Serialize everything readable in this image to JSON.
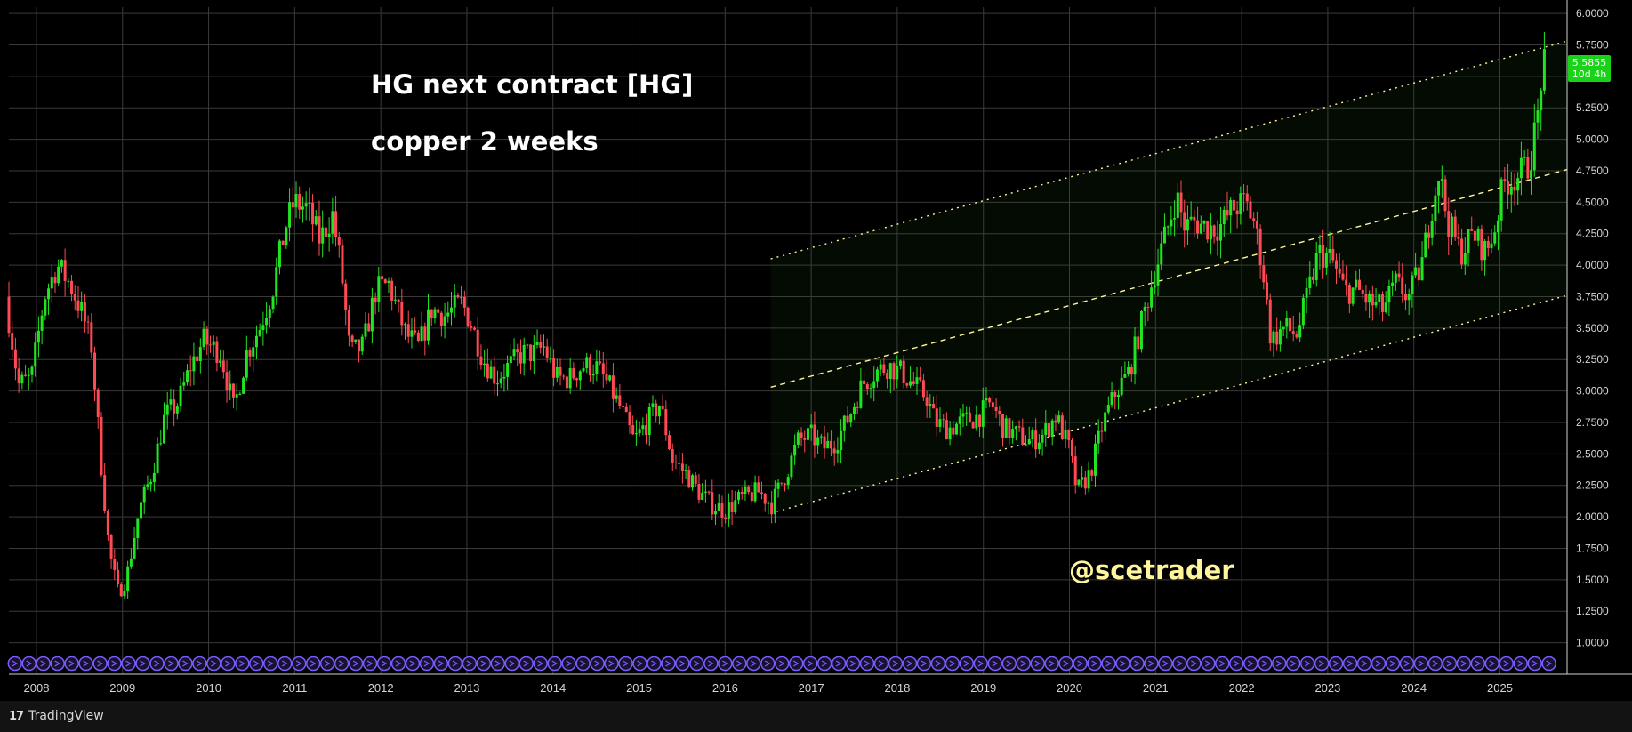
{
  "chart_data": {
    "type": "candlestick",
    "title": "HG next contract [HG]",
    "subtitle": "copper 2 weeks",
    "watermark": "@scetrader",
    "branding": "TradingView",
    "x_ticks": [
      "2008",
      "2009",
      "2010",
      "2011",
      "2012",
      "2013",
      "2014",
      "2015",
      "2016",
      "2017",
      "2018",
      "2019",
      "2020",
      "2021",
      "2022",
      "2023",
      "2024",
      "2025"
    ],
    "y_ticks": [
      "6.0000",
      "5.7500",
      "5.5000",
      "5.2500",
      "5.0000",
      "4.7500",
      "4.5000",
      "4.2500",
      "4.0000",
      "3.7500",
      "3.5000",
      "3.2500",
      "3.0000",
      "2.7500",
      "2.5000",
      "2.2500",
      "2.0000",
      "1.7500",
      "1.5000",
      "1.2500",
      "1.0000"
    ],
    "ylim": [
      0.75,
      6.05
    ],
    "xlim": [
      2007.75,
      2025.85
    ],
    "last_price": "5.5855",
    "countdown": "10d 4h",
    "colors": {
      "up": "#22e522",
      "down": "#ff4a55",
      "background": "#000000",
      "grid": "#3a3a3a",
      "channel": "#fff59d",
      "title": "#ffffff",
      "watermark": "#fff59d",
      "event_markers": "#7a5cff"
    },
    "price_path": [
      [
        2007.75,
        3.75
      ],
      [
        2007.9,
        3.05
      ],
      [
        2008.05,
        3.1
      ],
      [
        2008.2,
        3.75
      ],
      [
        2008.35,
        4.0
      ],
      [
        2008.5,
        3.85
      ],
      [
        2008.65,
        3.6
      ],
      [
        2008.75,
        3.35
      ],
      [
        2008.85,
        2.5
      ],
      [
        2008.95,
        1.75
      ],
      [
        2009.05,
        1.4
      ],
      [
        2009.15,
        1.5
      ],
      [
        2009.3,
        2.05
      ],
      [
        2009.45,
        2.35
      ],
      [
        2009.6,
        2.8
      ],
      [
        2009.75,
        2.9
      ],
      [
        2009.9,
        3.2
      ],
      [
        2010.05,
        3.4
      ],
      [
        2010.25,
        3.3
      ],
      [
        2010.4,
        2.85
      ],
      [
        2010.55,
        3.3
      ],
      [
        2010.7,
        3.5
      ],
      [
        2010.85,
        3.8
      ],
      [
        2011.0,
        4.3
      ],
      [
        2011.1,
        4.5
      ],
      [
        2011.25,
        4.45
      ],
      [
        2011.4,
        4.2
      ],
      [
        2011.55,
        4.4
      ],
      [
        2011.65,
        3.95
      ],
      [
        2011.75,
        3.3
      ],
      [
        2011.9,
        3.35
      ],
      [
        2012.05,
        3.8
      ],
      [
        2012.2,
        3.85
      ],
      [
        2012.4,
        3.45
      ],
      [
        2012.55,
        3.35
      ],
      [
        2012.7,
        3.65
      ],
      [
        2012.85,
        3.6
      ],
      [
        2013.05,
        3.7
      ],
      [
        2013.15,
        3.55
      ],
      [
        2013.3,
        3.25
      ],
      [
        2013.45,
        3.1
      ],
      [
        2013.6,
        3.2
      ],
      [
        2013.75,
        3.3
      ],
      [
        2013.9,
        3.3
      ],
      [
        2014.0,
        3.35
      ],
      [
        2014.15,
        3.1
      ],
      [
        2014.3,
        3.1
      ],
      [
        2014.45,
        3.2
      ],
      [
        2014.6,
        3.2
      ],
      [
        2014.75,
        3.05
      ],
      [
        2014.9,
        2.85
      ],
      [
        2015.05,
        2.6
      ],
      [
        2015.2,
        2.75
      ],
      [
        2015.35,
        2.9
      ],
      [
        2015.5,
        2.45
      ],
      [
        2015.65,
        2.35
      ],
      [
        2015.8,
        2.2
      ],
      [
        2015.95,
        2.1
      ],
      [
        2016.1,
        2.05
      ],
      [
        2016.3,
        2.15
      ],
      [
        2016.5,
        2.2
      ],
      [
        2016.65,
        2.1
      ],
      [
        2016.85,
        2.4
      ],
      [
        2016.95,
        2.6
      ],
      [
        2017.1,
        2.65
      ],
      [
        2017.25,
        2.55
      ],
      [
        2017.4,
        2.6
      ],
      [
        2017.55,
        2.8
      ],
      [
        2017.7,
        3.05
      ],
      [
        2017.85,
        3.15
      ],
      [
        2018.0,
        3.2
      ],
      [
        2018.15,
        3.15
      ],
      [
        2018.3,
        3.05
      ],
      [
        2018.45,
        2.95
      ],
      [
        2018.55,
        2.75
      ],
      [
        2018.7,
        2.7
      ],
      [
        2018.85,
        2.75
      ],
      [
        2019.05,
        2.8
      ],
      [
        2019.2,
        2.9
      ],
      [
        2019.35,
        2.7
      ],
      [
        2019.5,
        2.65
      ],
      [
        2019.65,
        2.6
      ],
      [
        2019.8,
        2.65
      ],
      [
        2019.95,
        2.8
      ],
      [
        2020.1,
        2.55
      ],
      [
        2020.2,
        2.2
      ],
      [
        2020.35,
        2.35
      ],
      [
        2020.5,
        2.75
      ],
      [
        2020.65,
        3.0
      ],
      [
        2020.8,
        3.15
      ],
      [
        2020.95,
        3.55
      ],
      [
        2021.1,
        3.95
      ],
      [
        2021.25,
        4.3
      ],
      [
        2021.35,
        4.55
      ],
      [
        2021.45,
        4.3
      ],
      [
        2021.55,
        4.35
      ],
      [
        2021.7,
        4.3
      ],
      [
        2021.85,
        4.3
      ],
      [
        2022.0,
        4.45
      ],
      [
        2022.15,
        4.5
      ],
      [
        2022.25,
        4.35
      ],
      [
        2022.35,
        4.0
      ],
      [
        2022.45,
        3.4
      ],
      [
        2022.6,
        3.5
      ],
      [
        2022.75,
        3.45
      ],
      [
        2022.85,
        3.7
      ],
      [
        2023.0,
        4.1
      ],
      [
        2023.15,
        4.05
      ],
      [
        2023.3,
        3.8
      ],
      [
        2023.45,
        3.8
      ],
      [
        2023.6,
        3.7
      ],
      [
        2023.75,
        3.65
      ],
      [
        2023.9,
        3.85
      ],
      [
        2024.05,
        3.75
      ],
      [
        2024.2,
        4.0
      ],
      [
        2024.3,
        4.4
      ],
      [
        2024.4,
        4.75
      ],
      [
        2024.5,
        4.35
      ],
      [
        2024.65,
        4.1
      ],
      [
        2024.8,
        4.25
      ],
      [
        2024.95,
        4.1
      ],
      [
        2025.05,
        4.3
      ],
      [
        2025.15,
        4.65
      ],
      [
        2025.3,
        4.7
      ],
      [
        2025.45,
        4.8
      ],
      [
        2025.55,
        5.2
      ],
      [
        2025.6,
        5.58
      ]
    ],
    "channel": {
      "upper": [
        [
          2016.6,
          4.05
        ],
        [
          2025.85,
          5.78
        ]
      ],
      "middle": [
        [
          2016.6,
          3.03
        ],
        [
          2025.85,
          4.76
        ]
      ],
      "lower": [
        [
          2016.6,
          2.03
        ],
        [
          2025.85,
          3.76
        ]
      ]
    }
  }
}
